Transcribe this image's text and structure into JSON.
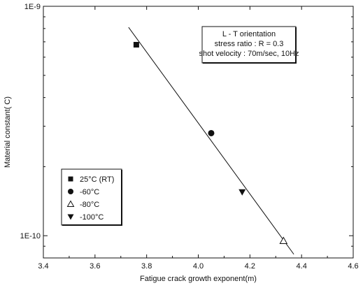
{
  "chart_data": {
    "type": "scatter",
    "xlabel": "Fatigue crack growth exponent(m)",
    "ylabel": "Material constant( C)",
    "xlim": [
      3.4,
      4.6
    ],
    "ylim": [
      8e-11,
      1e-09
    ],
    "y_scale": "log",
    "x_ticks": [
      3.4,
      3.6,
      3.8,
      4.0,
      4.2,
      4.4,
      4.6
    ],
    "x_tick_labels": [
      "3.4",
      "3.6",
      "3.8",
      "4.0",
      "4.2",
      "4.4",
      "4.6"
    ],
    "y_ticks": [
      1e-10,
      1e-09
    ],
    "y_tick_labels": [
      "1E-10",
      "1E-9"
    ],
    "grid": false,
    "series": [
      {
        "name": "25°C (RT)",
        "marker": "square",
        "x": [
          3.76
        ],
        "y": [
          6.8e-10
        ]
      },
      {
        "name": "-60°C",
        "marker": "circle",
        "x": [
          4.05
        ],
        "y": [
          2.8e-10
        ]
      },
      {
        "name": "-80°C",
        "marker": "triangle-up-open",
        "x": [
          4.33
        ],
        "y": [
          9.5e-11
        ]
      },
      {
        "name": "-100°C",
        "marker": "triangle-down",
        "x": [
          4.17
        ],
        "y": [
          1.55e-10
        ]
      }
    ],
    "fit_line": {
      "x": [
        3.73,
        4.37
      ],
      "y": [
        8.1e-10,
        8.3e-11
      ]
    },
    "annotation_lines": [
      "L - T orientation",
      "stress ratio : R = 0.3",
      "shot velocity : 70m/sec, 10Hz"
    ],
    "legend_position": "bottom-left"
  }
}
